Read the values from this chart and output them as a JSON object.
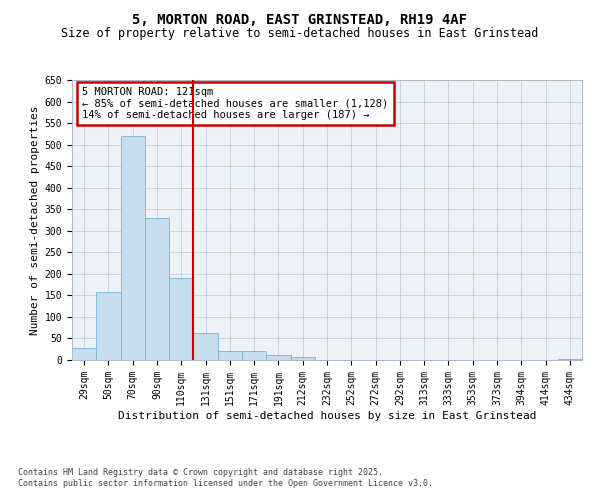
{
  "title": "5, MORTON ROAD, EAST GRINSTEAD, RH19 4AF",
  "subtitle": "Size of property relative to semi-detached houses in East Grinstead",
  "xlabel": "Distribution of semi-detached houses by size in East Grinstead",
  "ylabel": "Number of semi-detached properties",
  "categories": [
    "29sqm",
    "50sqm",
    "70sqm",
    "90sqm",
    "110sqm",
    "131sqm",
    "151sqm",
    "171sqm",
    "191sqm",
    "212sqm",
    "232sqm",
    "252sqm",
    "272sqm",
    "292sqm",
    "313sqm",
    "333sqm",
    "353sqm",
    "373sqm",
    "394sqm",
    "414sqm",
    "434sqm"
  ],
  "values": [
    28,
    158,
    520,
    330,
    190,
    62,
    22,
    22,
    12,
    8,
    0,
    0,
    0,
    0,
    0,
    0,
    0,
    0,
    0,
    0,
    2
  ],
  "bar_color": "#c6dcef",
  "bar_edge_color": "#7ab4d4",
  "vline_x_index": 5,
  "vline_color": "#cc0000",
  "annotation_title": "5 MORTON ROAD: 121sqm",
  "annotation_line1": "← 85% of semi-detached houses are smaller (1,128)",
  "annotation_line2": "14% of semi-detached houses are larger (187) →",
  "annotation_box_color": "#cc0000",
  "ylim": [
    0,
    650
  ],
  "yticks": [
    0,
    50,
    100,
    150,
    200,
    250,
    300,
    350,
    400,
    450,
    500,
    550,
    600,
    650
  ],
  "footer_line1": "Contains HM Land Registry data © Crown copyright and database right 2025.",
  "footer_line2": "Contains public sector information licensed under the Open Government Licence v3.0.",
  "bg_color": "#eef2f7",
  "title_fontsize": 10,
  "subtitle_fontsize": 8.5,
  "axis_label_fontsize": 8,
  "tick_fontsize": 7,
  "footer_fontsize": 6
}
